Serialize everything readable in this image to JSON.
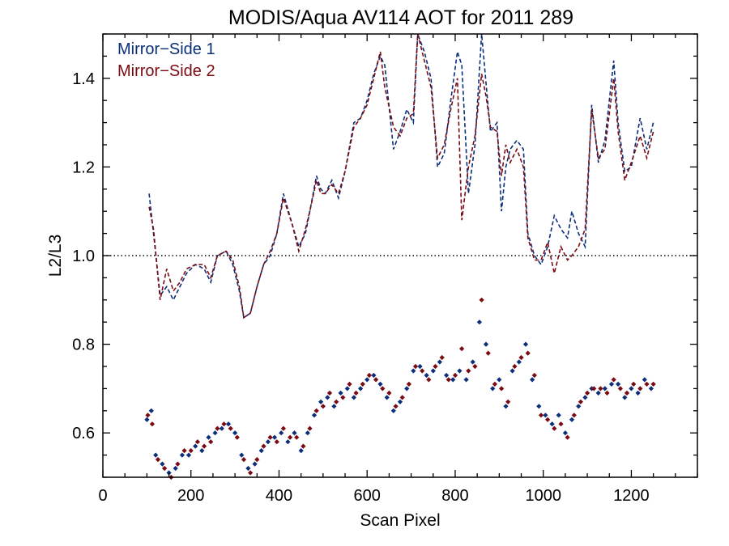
{
  "chart_data": {
    "type": "line",
    "title": "MODIS/Aqua AV114 AOT for 2011 289",
    "xlabel": "Scan Pixel",
    "ylabel": "L2/L3",
    "xlim": [
      0,
      1350
    ],
    "ylim": [
      0.5,
      1.5
    ],
    "x_ticks": [
      0,
      200,
      400,
      600,
      800,
      1000,
      1200
    ],
    "y_ticks": [
      0.6,
      0.8,
      1.0,
      1.2,
      1.4
    ],
    "reference_line": {
      "y": 1.0,
      "style": "dotted",
      "color": "#000000"
    },
    "legend": {
      "position": "top-left"
    },
    "colors": {
      "mirror_side_1": "#0b2f7a",
      "mirror_side_2": "#7a0b12"
    },
    "series": [
      {
        "name": "Mirror−Side 1",
        "style": "dashed",
        "x": [
          105,
          115,
          130,
          145,
          160,
          175,
          190,
          210,
          230,
          245,
          260,
          280,
          295,
          310,
          320,
          335,
          350,
          365,
          380,
          395,
          410,
          430,
          445,
          460,
          470,
          485,
          495,
          505,
          520,
          535,
          550,
          570,
          585,
          600,
          615,
          630,
          640,
          660,
          675,
          690,
          705,
          715,
          730,
          745,
          760,
          775,
          790,
          805,
          815,
          830,
          845,
          860,
          870,
          880,
          895,
          905,
          915,
          925,
          940,
          955,
          965,
          980,
          995,
          1010,
          1025,
          1040,
          1055,
          1065,
          1080,
          1095,
          1110,
          1125,
          1140,
          1160,
          1170,
          1185,
          1200,
          1220,
          1235,
          1250
        ],
        "values": [
          1.14,
          1.05,
          0.91,
          0.93,
          0.9,
          0.93,
          0.96,
          0.98,
          0.97,
          0.94,
          1.0,
          1.01,
          0.98,
          0.92,
          0.86,
          0.87,
          0.93,
          0.98,
          1.0,
          1.05,
          1.14,
          1.07,
          1.02,
          1.05,
          1.1,
          1.18,
          1.15,
          1.14,
          1.17,
          1.13,
          1.19,
          1.3,
          1.31,
          1.35,
          1.41,
          1.45,
          1.43,
          1.24,
          1.28,
          1.33,
          1.3,
          1.52,
          1.46,
          1.4,
          1.2,
          1.23,
          1.35,
          1.46,
          1.43,
          1.14,
          1.25,
          1.52,
          1.39,
          1.28,
          1.3,
          1.1,
          1.2,
          1.24,
          1.26,
          1.24,
          1.05,
          1.0,
          0.98,
          1.02,
          1.09,
          1.06,
          1.04,
          1.1,
          1.05,
          1.02,
          1.34,
          1.21,
          1.26,
          1.44,
          1.3,
          1.19,
          1.2,
          1.31,
          1.24,
          1.3
        ]
      },
      {
        "name": "Mirror−Side 2",
        "style": "dashed",
        "x": [
          105,
          115,
          130,
          145,
          160,
          175,
          190,
          210,
          230,
          245,
          260,
          280,
          295,
          310,
          320,
          335,
          350,
          365,
          380,
          395,
          410,
          430,
          445,
          460,
          470,
          485,
          495,
          505,
          520,
          535,
          550,
          570,
          585,
          600,
          615,
          630,
          640,
          660,
          675,
          690,
          705,
          715,
          730,
          745,
          760,
          775,
          790,
          805,
          815,
          830,
          845,
          860,
          870,
          880,
          895,
          905,
          915,
          925,
          940,
          955,
          965,
          980,
          995,
          1010,
          1025,
          1040,
          1055,
          1065,
          1080,
          1095,
          1110,
          1125,
          1140,
          1160,
          1170,
          1185,
          1200,
          1220,
          1235,
          1250
        ],
        "values": [
          1.11,
          1.06,
          0.9,
          0.97,
          0.92,
          0.94,
          0.97,
          0.98,
          0.98,
          0.95,
          1.0,
          1.01,
          0.99,
          0.93,
          0.86,
          0.87,
          0.93,
          0.98,
          1.01,
          1.05,
          1.13,
          1.07,
          1.01,
          1.06,
          1.1,
          1.17,
          1.14,
          1.14,
          1.16,
          1.14,
          1.19,
          1.29,
          1.31,
          1.34,
          1.4,
          1.46,
          1.38,
          1.29,
          1.27,
          1.31,
          1.32,
          1.5,
          1.44,
          1.38,
          1.22,
          1.25,
          1.33,
          1.4,
          1.08,
          1.2,
          1.27,
          1.41,
          1.36,
          1.29,
          1.28,
          1.18,
          1.25,
          1.21,
          1.24,
          1.2,
          1.04,
          0.99,
          0.99,
          1.03,
          0.96,
          1.02,
          0.99,
          1.0,
          1.02,
          1.06,
          1.33,
          1.22,
          1.24,
          1.4,
          1.28,
          1.17,
          1.21,
          1.27,
          1.22,
          1.28
        ]
      },
      {
        "name": "",
        "style": "points",
        "color_key": "mirror_side_1",
        "x": [
          100,
          110,
          120,
          135,
          150,
          165,
          180,
          195,
          210,
          225,
          240,
          255,
          270,
          285,
          300,
          315,
          330,
          345,
          360,
          375,
          390,
          405,
          420,
          435,
          450,
          465,
          480,
          495,
          510,
          525,
          540,
          555,
          570,
          585,
          600,
          615,
          630,
          645,
          660,
          675,
          690,
          705,
          720,
          735,
          750,
          765,
          780,
          795,
          810,
          825,
          840,
          855,
          870,
          885,
          900,
          915,
          930,
          945,
          960,
          975,
          990,
          1005,
          1020,
          1035,
          1050,
          1065,
          1080,
          1095,
          1110,
          1125,
          1140,
          1155,
          1170,
          1185,
          1200,
          1215,
          1230,
          1245
        ],
        "values": [
          0.63,
          0.65,
          0.55,
          0.53,
          0.51,
          0.52,
          0.55,
          0.55,
          0.57,
          0.56,
          0.59,
          0.6,
          0.61,
          0.62,
          0.6,
          0.55,
          0.52,
          0.53,
          0.56,
          0.58,
          0.59,
          0.6,
          0.58,
          0.6,
          0.56,
          0.6,
          0.64,
          0.67,
          0.68,
          0.66,
          0.69,
          0.7,
          0.68,
          0.7,
          0.72,
          0.73,
          0.71,
          0.68,
          0.65,
          0.67,
          0.7,
          0.74,
          0.75,
          0.73,
          0.74,
          0.76,
          0.73,
          0.72,
          0.74,
          0.72,
          0.76,
          0.85,
          0.8,
          0.7,
          0.72,
          0.66,
          0.74,
          0.76,
          0.8,
          0.72,
          0.66,
          0.64,
          0.62,
          0.64,
          0.6,
          0.63,
          0.66,
          0.68,
          0.7,
          0.69,
          0.7,
          0.71,
          0.71,
          0.68,
          0.7,
          0.69,
          0.72,
          0.7
        ]
      },
      {
        "name": "",
        "style": "points",
        "color_key": "mirror_side_2",
        "x": [
          102,
          112,
          125,
          140,
          155,
          170,
          185,
          200,
          215,
          230,
          245,
          260,
          275,
          290,
          305,
          320,
          335,
          350,
          365,
          380,
          395,
          410,
          425,
          440,
          455,
          470,
          485,
          500,
          515,
          530,
          545,
          560,
          575,
          590,
          605,
          620,
          635,
          650,
          665,
          680,
          695,
          710,
          725,
          740,
          755,
          770,
          785,
          800,
          815,
          830,
          845,
          860,
          875,
          890,
          905,
          920,
          935,
          950,
          965,
          980,
          995,
          1010,
          1025,
          1040,
          1055,
          1070,
          1085,
          1100,
          1115,
          1130,
          1145,
          1160,
          1175,
          1190,
          1205,
          1220,
          1235,
          1250
        ],
        "values": [
          0.64,
          0.62,
          0.54,
          0.52,
          0.5,
          0.53,
          0.56,
          0.56,
          0.58,
          0.57,
          0.58,
          0.61,
          0.62,
          0.61,
          0.59,
          0.54,
          0.51,
          0.54,
          0.57,
          0.59,
          0.58,
          0.61,
          0.59,
          0.59,
          0.57,
          0.61,
          0.65,
          0.66,
          0.69,
          0.67,
          0.68,
          0.71,
          0.69,
          0.71,
          0.73,
          0.72,
          0.7,
          0.69,
          0.66,
          0.68,
          0.71,
          0.75,
          0.74,
          0.72,
          0.75,
          0.77,
          0.72,
          0.73,
          0.79,
          0.74,
          0.75,
          0.9,
          0.78,
          0.71,
          0.7,
          0.67,
          0.75,
          0.77,
          0.78,
          0.73,
          0.64,
          0.63,
          0.61,
          0.62,
          0.59,
          0.64,
          0.67,
          0.69,
          0.7,
          0.7,
          0.69,
          0.72,
          0.7,
          0.69,
          0.71,
          0.7,
          0.71,
          0.71
        ]
      }
    ]
  }
}
